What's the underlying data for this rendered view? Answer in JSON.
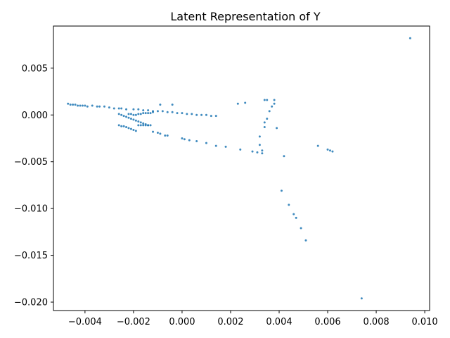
{
  "chart_data": {
    "type": "scatter",
    "title": "Latent Representation of Y",
    "xlabel": "",
    "ylabel": "",
    "xlim": [
      -0.0053,
      0.0102
    ],
    "ylim": [
      -0.0209,
      0.0095
    ],
    "xticks": [
      -0.004,
      -0.002,
      0.0,
      0.002,
      0.004,
      0.006,
      0.008,
      0.01
    ],
    "xtick_labels": [
      "−0.004",
      "−0.002",
      "0.000",
      "0.002",
      "0.004",
      "0.006",
      "0.008",
      "0.010"
    ],
    "yticks": [
      0.005,
      0.0,
      -0.005,
      -0.01,
      -0.015,
      -0.02
    ],
    "ytick_labels": [
      "0.005",
      "0.000",
      "−0.005",
      "−0.010",
      "−0.015",
      "−0.020"
    ],
    "grid": false,
    "legend": "none",
    "marker_color": "#1f77b4",
    "points": [
      [
        0.0094,
        0.0082
      ],
      [
        0.0074,
        -0.0196
      ],
      [
        0.0051,
        -0.0134
      ],
      [
        0.0049,
        -0.0121
      ],
      [
        0.0047,
        -0.011
      ],
      [
        0.0046,
        -0.0106
      ],
      [
        0.0044,
        -0.0096
      ],
      [
        0.0041,
        -0.0081
      ],
      [
        0.0062,
        -0.0039
      ],
      [
        0.0061,
        -0.0038
      ],
      [
        0.006,
        -0.0037
      ],
      [
        0.0056,
        -0.0033
      ],
      [
        0.0042,
        -0.0044
      ],
      [
        0.0039,
        -0.0014
      ],
      [
        0.0038,
        0.0016
      ],
      [
        0.0038,
        0.0012
      ],
      [
        0.0037,
        0.0009
      ],
      [
        0.0036,
        0.0004
      ],
      [
        0.0035,
        -0.0004
      ],
      [
        0.0034,
        -0.0008
      ],
      [
        0.0034,
        -0.0013
      ],
      [
        0.0035,
        0.0016
      ],
      [
        0.0034,
        0.0016
      ],
      [
        0.0033,
        -0.0038
      ],
      [
        0.0033,
        -0.0041
      ],
      [
        0.0032,
        -0.0032
      ],
      [
        0.0032,
        -0.0023
      ],
      [
        0.0031,
        -0.004
      ],
      [
        0.0029,
        -0.0039
      ],
      [
        0.0024,
        -0.0037
      ],
      [
        0.0026,
        0.0013
      ],
      [
        0.0023,
        0.0012
      ],
      [
        0.0018,
        -0.0034
      ],
      [
        0.0014,
        -0.0033
      ],
      [
        0.001,
        -0.003
      ],
      [
        0.0006,
        -0.0028
      ],
      [
        0.0003,
        -0.0027
      ],
      [
        0.0001,
        -0.0026
      ],
      [
        0.0,
        -0.0025
      ],
      [
        -0.0006,
        -0.0022
      ],
      [
        -0.0007,
        -0.0022
      ],
      [
        -0.0009,
        -0.002
      ],
      [
        -0.001,
        -0.0019
      ],
      [
        -0.0012,
        -0.0018
      ],
      [
        -0.0004,
        0.0011
      ],
      [
        -0.0009,
        0.0011
      ],
      [
        -0.0047,
        0.0012
      ],
      [
        -0.0046,
        0.0011
      ],
      [
        -0.0045,
        0.0011
      ],
      [
        -0.0044,
        0.0011
      ],
      [
        -0.0043,
        0.001
      ],
      [
        -0.0042,
        0.001
      ],
      [
        -0.0041,
        0.001
      ],
      [
        -0.004,
        0.001
      ],
      [
        -0.0039,
        0.0009
      ],
      [
        -0.0037,
        0.001
      ],
      [
        -0.0035,
        0.0009
      ],
      [
        -0.0034,
        0.0009
      ],
      [
        -0.0032,
        0.0009
      ],
      [
        -0.003,
        0.0008
      ],
      [
        -0.0028,
        0.0007
      ],
      [
        -0.0026,
        0.0007
      ],
      [
        -0.0025,
        0.0007
      ],
      [
        -0.0023,
        0.0006
      ],
      [
        -0.002,
        0.0006
      ],
      [
        -0.0018,
        0.0006
      ],
      [
        -0.0016,
        0.0005
      ],
      [
        -0.0014,
        0.0005
      ],
      [
        -0.0012,
        0.0004
      ],
      [
        -0.001,
        0.0004
      ],
      [
        -0.0008,
        0.0004
      ],
      [
        -0.0006,
        0.0003
      ],
      [
        -0.0004,
        0.0003
      ],
      [
        -0.0002,
        0.0002
      ],
      [
        0.0,
        0.0002
      ],
      [
        0.0002,
        0.0001
      ],
      [
        0.0004,
        0.0001
      ],
      [
        0.0006,
        0.0
      ],
      [
        0.0008,
        0.0
      ],
      [
        0.001,
        -0.0
      ],
      [
        0.0012,
        -0.0001
      ],
      [
        0.0014,
        -0.0001
      ],
      [
        -0.0026,
        0.0001
      ],
      [
        -0.0025,
        0.0
      ],
      [
        -0.0024,
        -0.0001
      ],
      [
        -0.0023,
        -0.0002
      ],
      [
        -0.0022,
        -0.0003
      ],
      [
        -0.0021,
        -0.0004
      ],
      [
        -0.002,
        -0.0005
      ],
      [
        -0.0019,
        -0.0006
      ],
      [
        -0.0018,
        -0.0007
      ],
      [
        -0.0017,
        -0.0008
      ],
      [
        -0.0016,
        -0.0009
      ],
      [
        -0.0015,
        -0.001
      ],
      [
        -0.0014,
        -0.0011
      ],
      [
        -0.0013,
        -0.0011
      ],
      [
        -0.0026,
        -0.0011
      ],
      [
        -0.0025,
        -0.0012
      ],
      [
        -0.0024,
        -0.0012
      ],
      [
        -0.0023,
        -0.0013
      ],
      [
        -0.0022,
        -0.0014
      ],
      [
        -0.0021,
        -0.0015
      ],
      [
        -0.002,
        -0.0016
      ],
      [
        -0.0019,
        -0.0017
      ],
      [
        -0.0018,
        -0.0011
      ],
      [
        -0.0017,
        -0.0011
      ],
      [
        -0.0016,
        -0.0011
      ],
      [
        -0.0015,
        -0.0011
      ],
      [
        -0.0014,
        -0.0011
      ],
      [
        -0.0022,
        0.0001
      ],
      [
        -0.0021,
        0.0001
      ],
      [
        -0.002,
        0.0
      ],
      [
        -0.0019,
        0.0
      ],
      [
        -0.0018,
        0.0001
      ],
      [
        -0.0017,
        0.0001
      ],
      [
        -0.0016,
        0.0002
      ],
      [
        -0.0015,
        0.0002
      ],
      [
        -0.0014,
        0.0002
      ],
      [
        -0.0013,
        0.0002
      ],
      [
        -0.0012,
        0.0003
      ]
    ]
  }
}
